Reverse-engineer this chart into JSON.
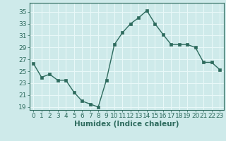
{
  "x": [
    0,
    1,
    2,
    3,
    4,
    5,
    6,
    7,
    8,
    9,
    10,
    11,
    12,
    13,
    14,
    15,
    16,
    17,
    18,
    19,
    20,
    21,
    22,
    23
  ],
  "y": [
    26.3,
    24.0,
    24.5,
    23.5,
    23.5,
    21.5,
    20.0,
    19.5,
    19.0,
    23.5,
    29.5,
    31.5,
    33.0,
    34.0,
    35.2,
    33.0,
    31.2,
    29.5,
    29.5,
    29.5,
    29.0,
    26.5,
    26.5,
    25.3
  ],
  "line_color": "#2e6b5e",
  "marker": "s",
  "markersize": 2.5,
  "linewidth": 1.0,
  "xlabel": "Humidex (Indice chaleur)",
  "xlim": [
    -0.5,
    23.5
  ],
  "ylim": [
    18.5,
    36.5
  ],
  "yticks": [
    19,
    21,
    23,
    25,
    27,
    29,
    31,
    33,
    35
  ],
  "xticks": [
    0,
    1,
    2,
    3,
    4,
    5,
    6,
    7,
    8,
    9,
    10,
    11,
    12,
    13,
    14,
    15,
    16,
    17,
    18,
    19,
    20,
    21,
    22,
    23
  ],
  "bg_color": "#ceeaea",
  "grid_color": "#e8f8f8",
  "line_frame_color": "#2e6b5e",
  "xlabel_fontsize": 7.5,
  "tick_fontsize": 6.5
}
